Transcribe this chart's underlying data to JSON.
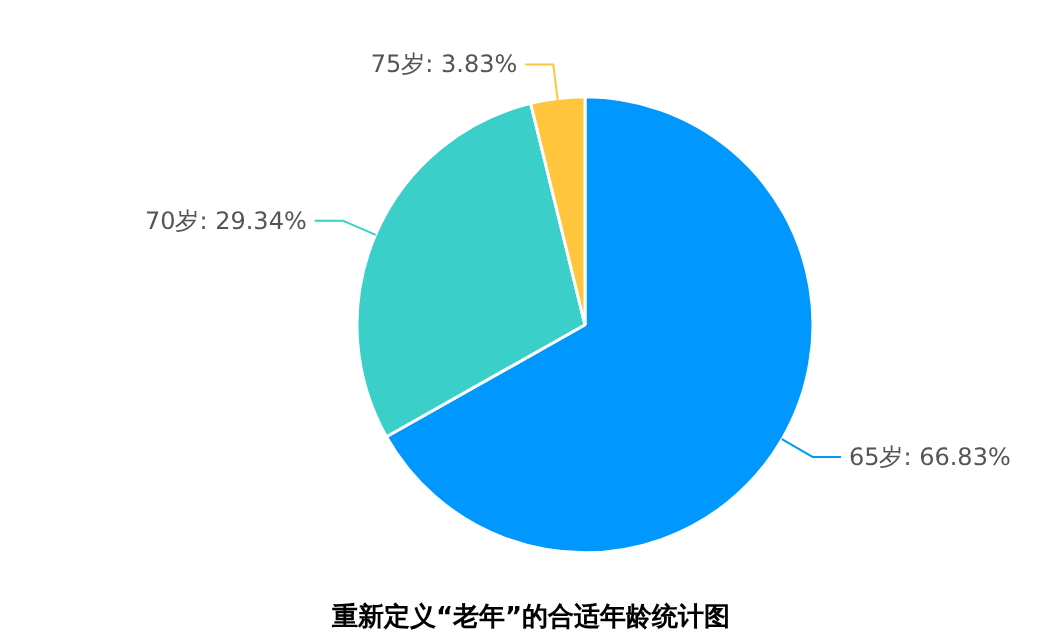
{
  "chart_data": {
    "type": "pie",
    "title": "重新定义“老年”的合适年龄统计图",
    "categories": [
      "65岁",
      "70岁",
      "75岁"
    ],
    "values": [
      66.83,
      29.34,
      3.83
    ],
    "value_labels": [
      "66.83%",
      "29.34%",
      "3.83%"
    ],
    "colors": [
      "#0098ff",
      "#3acfc9",
      "#ffc53d"
    ]
  }
}
